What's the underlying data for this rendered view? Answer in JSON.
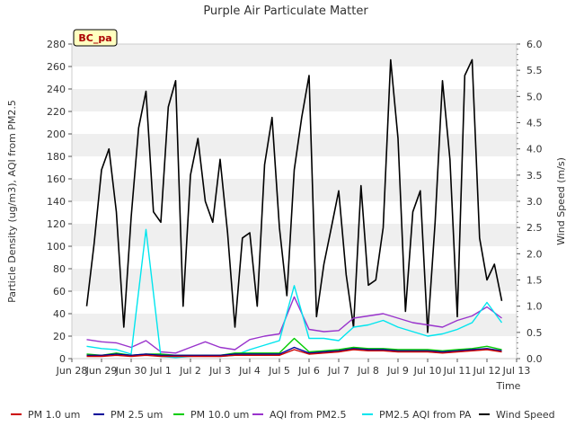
{
  "chart_data": {
    "type": "line",
    "title": "Purple Air Particulate Matter",
    "site_badge": "BC_pa",
    "xlabel": "Time",
    "ylabel_left": "Particle Density (ug/m3), AQI from PM2.5",
    "ylabel_right": "Wind Speed (m/s)",
    "xlim": [
      0,
      15
    ],
    "ylim_left": [
      0,
      280
    ],
    "ylim_right": [
      0,
      6.0
    ],
    "x_ticks": [
      0,
      1,
      2,
      3,
      4,
      5,
      6,
      7,
      8,
      9,
      10,
      11,
      12,
      13,
      14,
      15
    ],
    "x_tick_labels": [
      "Jun 28",
      "Jun 29",
      "Jun 30",
      "Jul 1",
      "Jul 2",
      "Jul 3",
      "Jul 4",
      "Jul 5",
      "Jul 6",
      "Jul 7",
      "Jul 8",
      "Jul 9",
      "Jul 10",
      "Jul 11",
      "Jul 12",
      "Jul 13"
    ],
    "y_ticks_left": [
      0,
      20,
      40,
      60,
      80,
      100,
      120,
      140,
      160,
      180,
      200,
      220,
      240,
      260,
      280
    ],
    "y_tick_labels_left": [
      "0",
      "20",
      "40",
      "60",
      "80",
      "100",
      "120",
      "140",
      "160",
      "180",
      "200",
      "220",
      "240",
      "260",
      "280"
    ],
    "y_ticks_right": [
      0,
      0.5,
      1.0,
      1.5,
      2.0,
      2.5,
      3.0,
      3.5,
      4.0,
      4.5,
      5.0,
      5.5,
      6.0
    ],
    "y_tick_labels_right": [
      "0.0",
      "0.5",
      "1.0",
      "1.5",
      "2.0",
      "2.5",
      "3.0",
      "3.5",
      "4.0",
      "4.5",
      "5.0",
      "5.5",
      "6.0"
    ],
    "grid": "horizontal bands",
    "legend_position": "bottom",
    "series": [
      {
        "name": "PM 1.0 um",
        "axis": "left",
        "color": "#cc0000",
        "x": [
          0.5,
          1.0,
          1.5,
          2.0,
          2.5,
          3.0,
          3.5,
          4.0,
          4.5,
          5.0,
          5.5,
          6.0,
          6.5,
          7.0,
          7.5,
          8.0,
          8.5,
          9.0,
          9.5,
          10.0,
          10.5,
          11.0,
          11.5,
          12.0,
          12.5,
          13.0,
          13.5,
          14.0,
          14.5
        ],
        "values": [
          2,
          2,
          3,
          2,
          3,
          2,
          2,
          2,
          2,
          2,
          3,
          3,
          3,
          3,
          8,
          4,
          5,
          6,
          8,
          7,
          7,
          6,
          6,
          6,
          5,
          6,
          7,
          8,
          6
        ]
      },
      {
        "name": "PM 2.5 um",
        "axis": "left",
        "color": "#000099",
        "x": [
          0.5,
          1.0,
          1.5,
          2.0,
          2.5,
          3.0,
          3.5,
          4.0,
          4.5,
          5.0,
          5.5,
          6.0,
          6.5,
          7.0,
          7.5,
          8.0,
          8.5,
          9.0,
          9.5,
          10.0,
          10.5,
          11.0,
          11.5,
          12.0,
          12.5,
          13.0,
          13.5,
          14.0,
          14.5
        ],
        "values": [
          3,
          3,
          4,
          3,
          4,
          3,
          3,
          3,
          3,
          3,
          4,
          4,
          4,
          4,
          10,
          5,
          6,
          7,
          9,
          8,
          8,
          7,
          7,
          7,
          6,
          7,
          8,
          9,
          7
        ]
      },
      {
        "name": "PM 10.0 um",
        "axis": "left",
        "color": "#00cc00",
        "x": [
          0.5,
          1.0,
          1.5,
          2.0,
          2.5,
          3.0,
          3.5,
          4.0,
          4.5,
          5.0,
          5.5,
          6.0,
          6.5,
          7.0,
          7.5,
          8.0,
          8.5,
          9.0,
          9.5,
          10.0,
          10.5,
          11.0,
          11.5,
          12.0,
          12.5,
          13.0,
          13.5,
          14.0,
          14.5
        ],
        "values": [
          4,
          3,
          5,
          3,
          4,
          4,
          3,
          3,
          3,
          3,
          5,
          5,
          5,
          5,
          18,
          6,
          7,
          8,
          10,
          9,
          9,
          8,
          8,
          8,
          7,
          8,
          9,
          11,
          8
        ]
      },
      {
        "name": "AQI from PM2.5",
        "axis": "left",
        "color": "#9933cc",
        "x": [
          0.5,
          1.0,
          1.5,
          2.0,
          2.5,
          3.0,
          3.5,
          4.0,
          4.5,
          5.0,
          5.5,
          6.0,
          6.5,
          7.0,
          7.5,
          8.0,
          8.5,
          9.0,
          9.5,
          10.0,
          10.5,
          11.0,
          11.5,
          12.0,
          12.5,
          13.0,
          13.5,
          14.0,
          14.5
        ],
        "values": [
          17,
          15,
          14,
          10,
          16,
          6,
          5,
          10,
          15,
          10,
          8,
          17,
          20,
          22,
          55,
          26,
          24,
          25,
          36,
          38,
          40,
          36,
          32,
          30,
          28,
          34,
          38,
          46,
          36
        ]
      },
      {
        "name": "PM2.5 AQI from PA",
        "axis": "left",
        "color": "#00e5ee",
        "x": [
          0.5,
          1.0,
          1.5,
          2.0,
          2.5,
          3.0,
          3.5,
          4.0,
          4.5,
          5.0,
          5.5,
          6.0,
          6.5,
          7.0,
          7.5,
          8.0,
          8.5,
          9.0,
          9.5,
          10.0,
          10.5,
          11.0,
          11.5,
          12.0,
          12.5,
          13.0,
          13.5,
          14.0,
          14.5
        ],
        "values": [
          11,
          9,
          8,
          4,
          115,
          2,
          1,
          2,
          3,
          2,
          3,
          8,
          12,
          16,
          65,
          18,
          18,
          16,
          28,
          30,
          34,
          28,
          24,
          20,
          22,
          26,
          32,
          50,
          32
        ]
      },
      {
        "name": "Wind Speed",
        "axis": "right",
        "color": "#000000",
        "x": [
          0.5,
          0.75,
          1.0,
          1.25,
          1.5,
          1.75,
          2.0,
          2.25,
          2.5,
          2.75,
          3.0,
          3.25,
          3.5,
          3.75,
          4.0,
          4.25,
          4.5,
          4.75,
          5.0,
          5.25,
          5.5,
          5.75,
          6.0,
          6.25,
          6.5,
          6.75,
          7.0,
          7.25,
          7.5,
          7.75,
          8.0,
          8.25,
          8.5,
          8.75,
          9.0,
          9.25,
          9.5,
          9.75,
          10.0,
          10.25,
          10.5,
          10.75,
          11.0,
          11.25,
          11.5,
          11.75,
          12.0,
          12.25,
          12.5,
          12.75,
          13.0,
          13.25,
          13.5,
          13.75,
          14.0,
          14.25,
          14.5
        ],
        "values": [
          1.0,
          2.2,
          3.6,
          4.0,
          2.8,
          0.6,
          2.7,
          4.4,
          5.1,
          2.8,
          2.6,
          4.8,
          5.3,
          1.0,
          3.5,
          4.2,
          3.0,
          2.6,
          3.8,
          2.4,
          0.6,
          2.3,
          2.4,
          1.0,
          3.7,
          4.6,
          2.5,
          1.2,
          3.6,
          4.6,
          5.4,
          0.8,
          1.8,
          2.5,
          3.2,
          1.6,
          0.6,
          3.3,
          1.4,
          1.5,
          2.5,
          5.7,
          4.2,
          0.9,
          2.8,
          3.2,
          0.5,
          2.6,
          5.3,
          3.8,
          0.8,
          5.4,
          5.7,
          2.3,
          1.5,
          1.8,
          1.1
        ]
      }
    ]
  }
}
